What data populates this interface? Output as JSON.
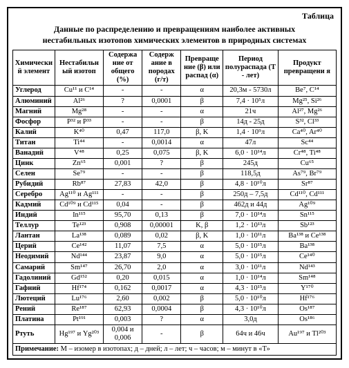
{
  "label": "Таблица",
  "title_l1": "Данные по распределению и превращениям наиболее активных",
  "title_l2": "нестабильных изотопов химических элементов в природных системах",
  "headers": [
    "Химически й элемент",
    "Нестабильн ый изотоп",
    "Содержа ние от общего (%)",
    "Содерж ание в породах (г/т)",
    "Превраще ние (β) или распад (α)",
    "Период полураспада (Т - лет)",
    "Продукт превращени я"
  ],
  "rows": [
    {
      "e": "Углерод",
      "iso": "Cu¹¹ и C¹⁴",
      "p": "-",
      "g": "-",
      "d": "α",
      "t": "20,3м - 5730л",
      "pr": "Be⁷, C¹⁴"
    },
    {
      "e": "Алюминий",
      "iso": "Al²⁶",
      "p": "?",
      "g": "0,0001",
      "d": "β",
      "t": "7,4 · 10⁵л",
      "pr": "Mg²⁵, Si²⁶"
    },
    {
      "e": "Магний",
      "iso": "Mg²⁸",
      "p": "-",
      "g": "-",
      "d": "α",
      "t": "21ч",
      "pr": "Al²⁷, Mg²⁶"
    },
    {
      "e": "Фосфор",
      "iso": "P³² и P³³",
      "p": "-",
      "g": "-",
      "d": "β",
      "t": "14д - 25д",
      "pr": "S³², Cl³³"
    },
    {
      "e": "Калий",
      "iso": "K⁴⁰",
      "p": "0,47",
      "g": "117,0",
      "d": "β, K",
      "t": "1,4 · 10⁹л",
      "pr": "Ca⁴⁰, Ar⁴⁰"
    },
    {
      "e": "Титан",
      "iso": "Ti⁴⁴",
      "p": "-",
      "g": "0,0014",
      "d": "α",
      "t": "47л",
      "pr": "Sc⁴⁴"
    },
    {
      "e": "Ванадий",
      "iso": "V⁴⁸",
      "p": "0,25",
      "g": "0,075",
      "d": "β, K",
      "t": "6,0 · 10¹⁴л",
      "pr": "Cr⁴⁸, Ti⁴⁸"
    },
    {
      "e": "Цинк",
      "iso": "Zn⁶⁵",
      "p": "0,001",
      "g": "?",
      "d": "β",
      "t": "245д",
      "pr": "Cu⁶⁵"
    },
    {
      "e": "Селен",
      "iso": "Se⁷⁹",
      "p": "-",
      "g": "-",
      "d": "β",
      "t": "118,5д",
      "pr": "As⁷⁹, Br⁷⁹"
    },
    {
      "e": "Рубидий",
      "iso": "Rb⁸⁷",
      "p": "27,83",
      "g": "42,0",
      "d": "β",
      "t": "4,8 · 10¹⁰л",
      "pr": "Sr⁸⁷"
    },
    {
      "e": "Серебро",
      "iso": "Ag¹¹⁰ и Ag¹¹¹",
      "p": "-",
      "g": "-",
      "d": "β",
      "t": "250д – 7,5д",
      "pr": "Cd¹¹⁰, Cd¹¹¹"
    },
    {
      "e": "Кадмий",
      "iso": "Cd¹⁰⁹ и Cd¹¹⁵",
      "p": "0,04",
      "g": "-",
      "d": "β",
      "t": "462д и 44д",
      "pr": "Ag¹⁰⁹"
    },
    {
      "e": "Индий",
      "iso": "In¹¹⁵",
      "p": "95,70",
      "g": "0,13",
      "d": "β",
      "t": "7,0 · 10¹⁴л",
      "pr": "Sn¹¹⁵"
    },
    {
      "e": "Теллур",
      "iso": "Te¹²³",
      "p": "0,908",
      "g": "0,00001",
      "d": "K, β",
      "t": "1,2 · 10¹³л",
      "pr": "Sb¹²³"
    },
    {
      "e": "Лантан",
      "iso": "La¹³⁸",
      "p": "0,089",
      "g": "0,02",
      "d": "β, K",
      "t": "1,0 · 10¹¹л",
      "pr": "Ba¹³⁸ и Ce¹³⁸"
    },
    {
      "e": "Церий",
      "iso": "Ce¹⁴²",
      "p": "11,07",
      "g": "7,5",
      "d": "α",
      "t": "5,0 · 10¹⁵л",
      "pr": "Ba¹³⁸"
    },
    {
      "e": "Неодимий",
      "iso": "Nd¹⁴⁴",
      "p": "23,87",
      "g": "9,0",
      "d": "α",
      "t": "5,0 · 10¹⁵л",
      "pr": "Ce¹⁴⁰"
    },
    {
      "e": "Самарий",
      "iso": "Sm¹⁴⁷",
      "p": "26,70",
      "g": "2,0",
      "d": "α",
      "t": "3,0 · 10¹¹л",
      "pr": "Nd¹⁴³"
    },
    {
      "e": "Гадолиний",
      "iso": "Gd¹⁵²",
      "p": "0,20",
      "g": "0,015",
      "d": "α",
      "t": "1,0 · 10¹⁴л",
      "pr": "Sm¹⁴⁸"
    },
    {
      "e": "Гафний",
      "iso": "Hf¹⁷⁴",
      "p": "0,162",
      "g": "0,0017",
      "d": "α",
      "t": "4,3 · 10¹⁵л",
      "pr": "Y¹⁷⁰"
    },
    {
      "e": "Лютеций",
      "iso": "Lu¹⁷⁶",
      "p": "2,60",
      "g": "0,002",
      "d": "β",
      "t": "5,0 · 10¹⁰л",
      "pr": "Hf¹⁷⁶"
    },
    {
      "e": "Рений",
      "iso": "Re¹⁸⁷",
      "p": "62,93",
      "g": "0,0004",
      "d": "β",
      "t": "4,3 · 10¹⁰л",
      "pr": "Os¹⁸⁷"
    },
    {
      "e": "Платина",
      "iso": "Pt¹⁹¹",
      "p": "0,003",
      "g": "?",
      "d": "α",
      "t": "3,0д",
      "pr": "Os¹⁸⁶"
    },
    {
      "e": "Ртуть",
      "iso": "Hg¹⁹⁷ и Yg²⁰³",
      "p": "0,004 и 0,006",
      "g": "-",
      "d": "β",
      "t": "64ч и 46ч",
      "pr": "Au¹⁹⁷ и Tl²⁰³"
    }
  ],
  "note_label": "Примечание:",
  "note_text": " М – изомер в изотопах; д – дней; л – лет; ч – часов; м – минут в «Т»"
}
